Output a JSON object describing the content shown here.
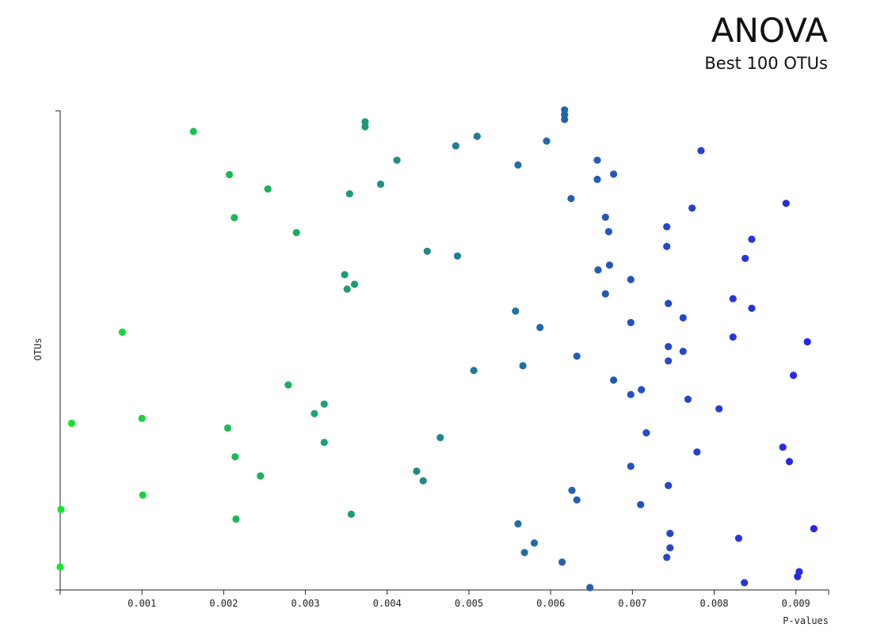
{
  "chart_data": {
    "type": "scatter",
    "title": "ANOVA",
    "subtitle": "Best 100 OTUs",
    "xlabel": "P-values",
    "ylabel": "OTUs",
    "xlim": [
      0,
      0.0094
    ],
    "ylim": [
      0,
      100
    ],
    "xticks": [
      "0.001",
      "0.002",
      "0.003",
      "0.004",
      "0.005",
      "0.006",
      "0.007",
      "0.008",
      "0.009"
    ],
    "xtick_values": [
      0.001,
      0.002,
      0.003,
      0.004,
      0.005,
      0.006,
      0.007,
      0.008,
      0.009
    ],
    "color_low": "#17e62c",
    "color_high": "#2a1ff0",
    "points": [
      [
        0.00617,
        100.2
      ],
      [
        0.00617,
        99.2
      ],
      [
        0.00617,
        98.2
      ],
      [
        0.00373,
        97.7
      ],
      [
        0.00373,
        96.7
      ],
      [
        0.00163,
        95.7
      ],
      [
        0.0051,
        94.7
      ],
      [
        0.00595,
        93.7
      ],
      [
        0.00484,
        92.7
      ],
      [
        0.00784,
        91.7
      ],
      [
        0.00412,
        89.7
      ],
      [
        0.00657,
        89.7
      ],
      [
        0.0056,
        88.7
      ],
      [
        0.00677,
        86.8
      ],
      [
        0.00207,
        86.7
      ],
      [
        0.00657,
        85.7
      ],
      [
        0.00392,
        84.7
      ],
      [
        0.00254,
        83.7
      ],
      [
        0.00354,
        82.7
      ],
      [
        0.00625,
        81.7
      ],
      [
        0.00888,
        80.7
      ],
      [
        0.00773,
        79.7
      ],
      [
        0.00667,
        77.8
      ],
      [
        0.00213,
        77.7
      ],
      [
        0.00742,
        75.8
      ],
      [
        0.00671,
        74.8
      ],
      [
        0.00289,
        74.6
      ],
      [
        0.00846,
        73.2
      ],
      [
        0.00742,
        71.7
      ],
      [
        0.00449,
        70.7
      ],
      [
        0.00486,
        69.7
      ],
      [
        0.00838,
        69.2
      ],
      [
        0.00672,
        67.8
      ],
      [
        0.00658,
        66.8
      ],
      [
        0.00348,
        65.8
      ],
      [
        0.00698,
        64.8
      ],
      [
        0.0036,
        63.8
      ],
      [
        0.00351,
        62.8
      ],
      [
        0.00667,
        61.8
      ],
      [
        0.00823,
        60.8
      ],
      [
        0.00744,
        59.8
      ],
      [
        0.00846,
        58.8
      ],
      [
        0.00557,
        58.2
      ],
      [
        0.00762,
        56.8
      ],
      [
        0.00698,
        55.8
      ],
      [
        0.00587,
        54.8
      ],
      [
        0.00076,
        53.8
      ],
      [
        0.00823,
        52.8
      ],
      [
        0.00914,
        51.8
      ],
      [
        0.00744,
        50.8
      ],
      [
        0.00762,
        49.8
      ],
      [
        0.00632,
        48.8
      ],
      [
        0.00744,
        47.8
      ],
      [
        0.00566,
        46.8
      ],
      [
        0.00506,
        45.8
      ],
      [
        0.00897,
        44.8
      ],
      [
        0.00677,
        43.8
      ],
      [
        0.00279,
        42.8
      ],
      [
        0.00711,
        41.8
      ],
      [
        0.00698,
        40.8
      ],
      [
        0.00768,
        39.8
      ],
      [
        0.00323,
        38.8
      ],
      [
        0.00806,
        37.8
      ],
      [
        0.00311,
        36.8
      ],
      [
        0.001,
        35.8
      ],
      [
        0.00014,
        34.8
      ],
      [
        0.00205,
        33.8
      ],
      [
        0.00717,
        32.8
      ],
      [
        0.00465,
        31.8
      ],
      [
        0.00323,
        30.8
      ],
      [
        0.00884,
        29.8
      ],
      [
        0.00779,
        28.8
      ],
      [
        0.00214,
        27.8
      ],
      [
        0.00892,
        26.8
      ],
      [
        0.00698,
        25.8
      ],
      [
        0.00436,
        24.8
      ],
      [
        0.00245,
        23.8
      ],
      [
        0.00444,
        22.8
      ],
      [
        0.00744,
        21.8
      ],
      [
        0.00626,
        20.8
      ],
      [
        0.00101,
        19.8
      ],
      [
        0.00632,
        18.8
      ],
      [
        0.0071,
        17.8
      ],
      [
        1e-05,
        16.8
      ],
      [
        0.00356,
        15.8
      ],
      [
        0.00215,
        14.8
      ],
      [
        0.0056,
        13.8
      ],
      [
        0.00922,
        12.8
      ],
      [
        0.00746,
        11.8
      ],
      [
        0.0083,
        10.8
      ],
      [
        0.0058,
        9.8
      ],
      [
        0.00746,
        8.8
      ],
      [
        0.00568,
        7.8
      ],
      [
        0.00742,
        6.8
      ],
      [
        0.00614,
        5.8
      ],
      [
        0.0,
        4.8
      ],
      [
        0.00904,
        3.8
      ],
      [
        0.00902,
        2.8
      ],
      [
        0.00837,
        1.5
      ],
      [
        0.00648,
        0.5
      ]
    ]
  }
}
